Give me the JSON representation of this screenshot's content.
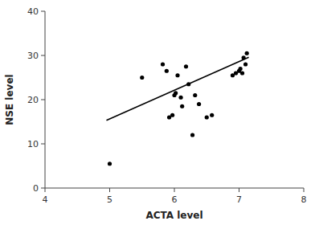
{
  "chart_data": {
    "type": "scatter",
    "xlabel": "ACTA level",
    "ylabel": "NSE level",
    "xlim": [
      4,
      8
    ],
    "ylim": [
      0,
      40
    ],
    "xticks": [
      4,
      5,
      6,
      7,
      8
    ],
    "yticks": [
      0,
      10,
      20,
      30,
      40
    ],
    "grid": false,
    "series": [
      {
        "type": "scatter",
        "color": "#000000",
        "x": [
          5.0,
          5.5,
          5.82,
          5.88,
          5.92,
          5.97,
          6.0,
          6.02,
          6.05,
          6.1,
          6.12,
          6.18,
          6.22,
          6.28,
          6.32,
          6.38,
          6.5,
          6.58,
          6.9,
          6.95,
          7.0,
          7.02,
          7.05,
          7.07,
          7.1,
          7.12
        ],
        "values": [
          5.5,
          25.0,
          28.0,
          26.5,
          16.0,
          16.5,
          21.0,
          21.5,
          25.5,
          20.5,
          18.5,
          27.5,
          23.5,
          12.0,
          21.0,
          19.0,
          16.0,
          16.5,
          25.5,
          26.0,
          26.5,
          27.0,
          26.0,
          29.5,
          28.0,
          30.5
        ]
      },
      {
        "type": "line",
        "color": "#000000",
        "x": [
          4.95,
          7.15
        ],
        "values": [
          15.3,
          29.6
        ]
      }
    ]
  }
}
